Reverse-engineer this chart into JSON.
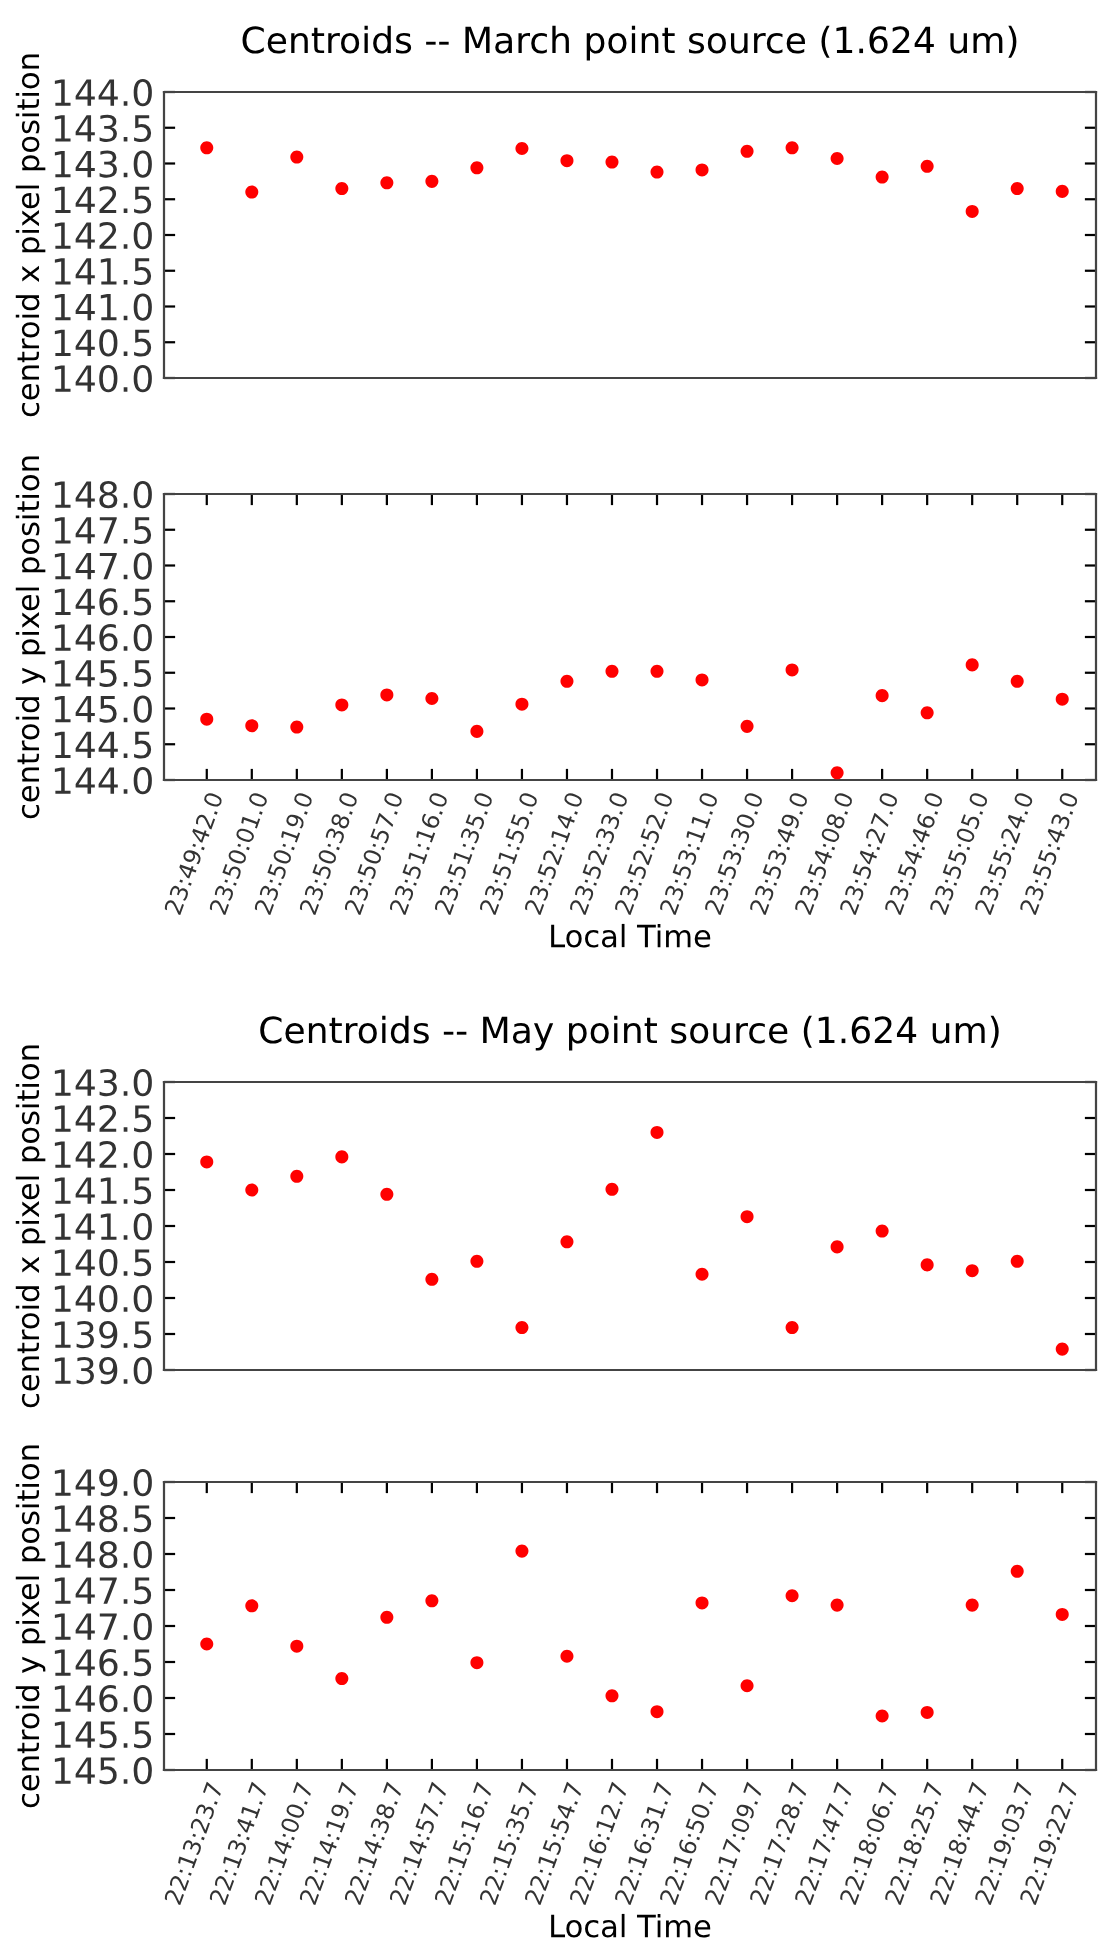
{
  "chart_data": [
    {
      "type": "scatter",
      "title": "Centroids -- March point source (1.624 um)",
      "ylabel": "centroid x pixel position",
      "tick_labels": "y",
      "marker": "circle",
      "grid": false,
      "legend": false,
      "series": [
        {
          "color": "#ff0000",
          "values": [
            143.22,
            142.6,
            143.09,
            142.65,
            142.73,
            142.75,
            142.94,
            143.21,
            143.04,
            143.02,
            142.88,
            142.91,
            143.17,
            143.22,
            143.07,
            142.81,
            142.96,
            142.33,
            142.65,
            142.61
          ]
        }
      ],
      "ylim": [
        140.0,
        144.0
      ],
      "yticks": [
        {
          "value": 140,
          "label": "140.0"
        },
        140.5,
        {
          "value": 141,
          "label": "141.0"
        },
        141.5,
        {
          "value": 142,
          "label": "142.0"
        },
        142.5,
        {
          "value": 143,
          "label": "143.0"
        },
        143.5,
        {
          "value": 144,
          "label": "144.0"
        }
      ]
    },
    {
      "type": "scatter",
      "ylabel": "centroid y pixel position",
      "xlabel": "Local Time",
      "marker": "circle",
      "grid": false,
      "legend": false,
      "categories": [
        "23:49:42.0",
        "23:50:01.0",
        "23:50:19.0",
        "23:50:38.0",
        "23:50:57.0",
        "23:51:16.0",
        "23:51:35.0",
        "23:51:55.0",
        "23:52:14.0",
        "23:52:33.0",
        "23:52:52.0",
        "23:53:11.0",
        "23:53:30.0",
        "23:53:49.0",
        "23:54:08.0",
        "23:54:27.0",
        "23:54:46.0",
        "23:55:05.0",
        "23:55:24.0",
        "23:55:43.0"
      ],
      "series": [
        {
          "color": "#ff0000",
          "values": [
            144.85,
            144.76,
            144.74,
            145.05,
            145.19,
            145.14,
            144.68,
            145.06,
            145.38,
            145.52,
            145.52,
            145.4,
            144.75,
            145.54,
            144.1,
            145.18,
            144.94,
            145.61,
            145.38,
            145.13
          ]
        }
      ],
      "ylim": [
        144.0,
        148.0
      ],
      "yticks": [
        {
          "value": 144,
          "label": "144.0"
        },
        144.5,
        {
          "value": 145,
          "label": "145.0"
        },
        145.5,
        {
          "value": 146,
          "label": "146.0"
        },
        146.5,
        {
          "value": 147,
          "label": "147.0"
        },
        147.5,
        {
          "value": 148,
          "label": "148.0"
        }
      ]
    },
    {
      "type": "scatter",
      "title": "Centroids -- May point source (1.624 um)",
      "ylabel": "centroid x pixel position",
      "tick_labels": "y",
      "marker": "circle",
      "grid": false,
      "legend": false,
      "series": [
        {
          "color": "#ff0000",
          "values": [
            141.89,
            141.5,
            141.69,
            141.96,
            141.44,
            140.26,
            140.51,
            139.59,
            140.78,
            141.51,
            142.3,
            140.33,
            141.13,
            139.59,
            140.71,
            140.93,
            140.46,
            140.38,
            140.51,
            139.29
          ]
        }
      ],
      "ylim": [
        139.0,
        143.0
      ],
      "yticks": [
        {
          "value": 139,
          "label": "139.0"
        },
        139.5,
        {
          "value": 140,
          "label": "140.0"
        },
        140.5,
        {
          "value": 141,
          "label": "141.0"
        },
        141.5,
        {
          "value": 142,
          "label": "142.0"
        },
        142.5,
        {
          "value": 143,
          "label": "143.0"
        }
      ]
    },
    {
      "type": "scatter",
      "ylabel": "centroid y pixel position",
      "xlabel": "Local Time",
      "marker": "circle",
      "grid": false,
      "legend": false,
      "categories": [
        "22:13:23.7",
        "22:13:41.7",
        "22:14:00.7",
        "22:14:19.7",
        "22:14:38.7",
        "22:14:57.7",
        "22:15:16.7",
        "22:15:35.7",
        "22:15:54.7",
        "22:16:12.7",
        "22:16:31.7",
        "22:16:50.7",
        "22:17:09.7",
        "22:17:28.7",
        "22:17:47.7",
        "22:18:06.7",
        "22:18:25.7",
        "22:18:44.7",
        "22:19:03.7",
        "22:19:22.7"
      ],
      "series": [
        {
          "color": "#ff0000",
          "values": [
            146.75,
            147.28,
            146.72,
            146.27,
            147.12,
            147.35,
            146.49,
            148.04,
            146.58,
            146.03,
            145.81,
            147.32,
            146.17,
            147.42,
            147.29,
            145.75,
            145.8,
            147.29,
            147.76,
            147.16
          ]
        }
      ],
      "ylim": [
        145.0,
        149.0
      ],
      "yticks": [
        {
          "value": 145,
          "label": "145.0"
        },
        145.5,
        {
          "value": 146,
          "label": "146.0"
        },
        146.5,
        {
          "value": 147,
          "label": "147.0"
        },
        147.5,
        {
          "value": 148,
          "label": "148.0"
        },
        148.5,
        {
          "value": 149,
          "label": "149.0"
        }
      ]
    }
  ]
}
